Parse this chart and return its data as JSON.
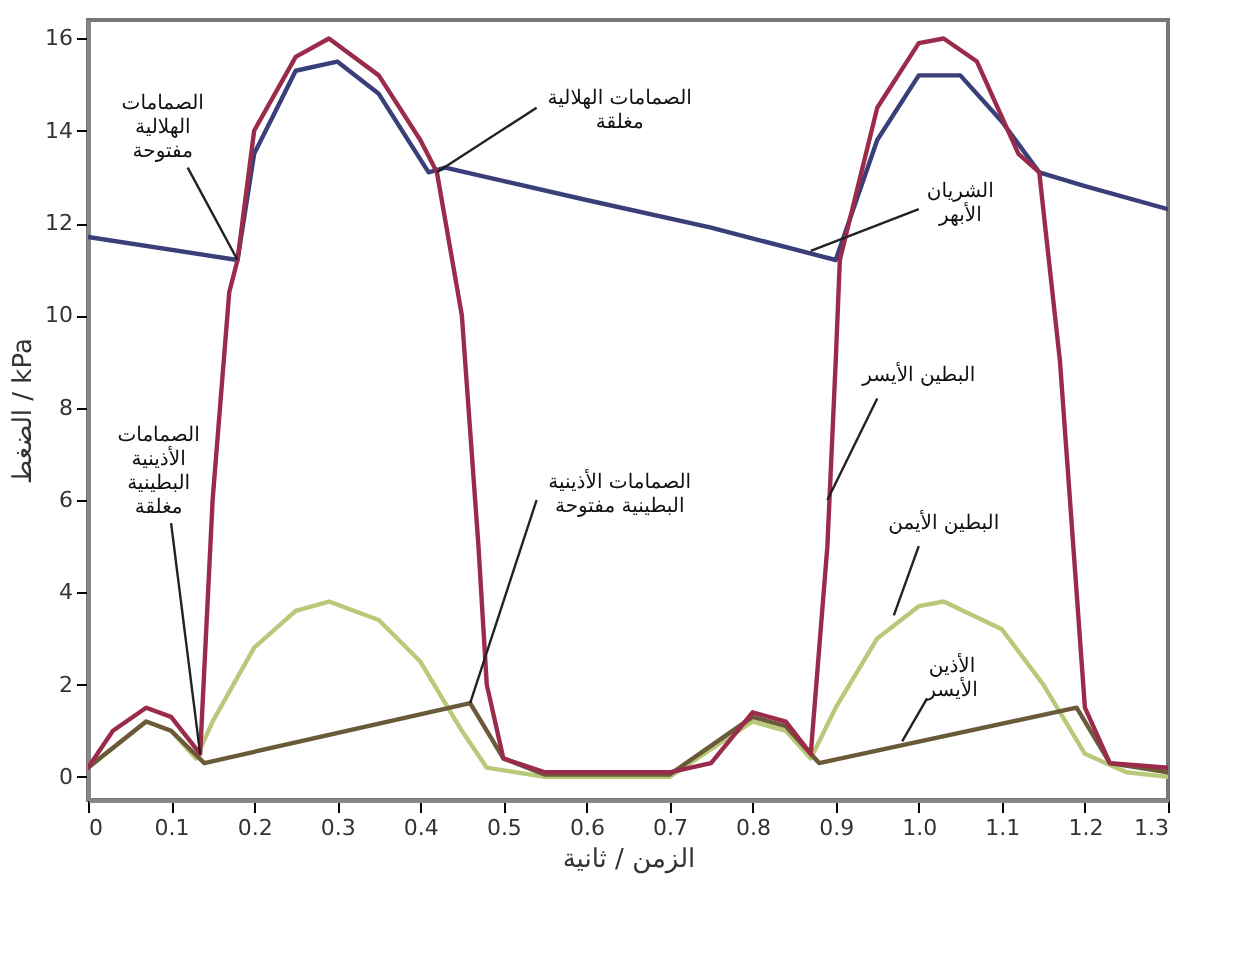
{
  "chart_data": {
    "type": "line",
    "xlabel": "الزمن / ثانية",
    "ylabel": "الضغط / kPa",
    "xlim": [
      0,
      1.3
    ],
    "ylim": [
      -0.5,
      16.4
    ],
    "xticks": [
      0,
      0.1,
      0.2,
      0.3,
      0.4,
      0.5,
      0.6,
      0.7,
      0.8,
      0.9,
      {
        "value": 1,
        "label": "1.0"
      },
      1.1,
      1.2,
      1.3
    ],
    "yticks": [
      0,
      2,
      4,
      6,
      8,
      10,
      12,
      14,
      16
    ],
    "grid": false,
    "marker": "none",
    "line_style": "solid",
    "series": [
      {
        "color": "#3a3f7a",
        "x": [
          0,
          0.18,
          0.2,
          0.25,
          0.3,
          0.35,
          0.41,
          0.43,
          0.6,
          0.75,
          0.9,
          0.95,
          1.0,
          1.05,
          1.1,
          1.145,
          1.2,
          1.3
        ],
        "values": [
          11.7,
          11.2,
          13.5,
          15.3,
          15.5,
          14.8,
          13.1,
          13.2,
          12.5,
          11.9,
          11.2,
          13.8,
          15.2,
          15.2,
          14.2,
          13.1,
          12.8,
          12.3
        ]
      },
      {
        "color": "#b8c97a",
        "x": [
          0,
          0.07,
          0.1,
          0.13,
          0.15,
          0.2,
          0.25,
          0.29,
          0.35,
          0.4,
          0.45,
          0.48,
          0.55,
          0.7,
          0.8,
          0.84,
          0.87,
          0.9,
          0.95,
          1.0,
          1.03,
          1.1,
          1.15,
          1.2,
          1.25,
          1.3
        ],
        "values": [
          0.2,
          1.2,
          1.0,
          0.4,
          1.2,
          2.8,
          3.6,
          3.8,
          3.4,
          2.5,
          1.0,
          0.2,
          0,
          0,
          1.2,
          1.0,
          0.4,
          1.5,
          3.0,
          3.7,
          3.8,
          3.2,
          2.0,
          0.5,
          0.1,
          0
        ]
      },
      {
        "color": "#6b5a3a",
        "x": [
          0,
          0.07,
          0.1,
          0.14,
          0.46,
          0.5,
          0.55,
          0.7,
          0.8,
          0.84,
          0.88,
          1.19,
          1.23,
          1.3
        ],
        "values": [
          0.2,
          1.2,
          1.0,
          0.3,
          1.6,
          0.4,
          0.05,
          0.05,
          1.3,
          1.1,
          0.3,
          1.5,
          0.3,
          0.1
        ]
      },
      {
        "color": "#9b2b4a",
        "x": [
          0,
          0.03,
          0.07,
          0.1,
          0.135,
          0.15,
          0.17,
          0.18,
          0.2,
          0.25,
          0.29,
          0.35,
          0.4,
          0.42,
          0.45,
          0.47,
          0.48,
          0.5,
          0.55,
          0.7,
          0.75,
          0.8,
          0.84,
          0.87,
          0.89,
          0.9,
          0.905,
          0.95,
          1.0,
          1.03,
          1.07,
          1.12,
          1.145,
          1.17,
          1.19,
          1.2,
          1.23,
          1.3
        ],
        "values": [
          0.2,
          1.0,
          1.5,
          1.3,
          0.5,
          6,
          10.5,
          11.2,
          14,
          15.6,
          16,
          15.2,
          13.8,
          13.1,
          10,
          5,
          2,
          0.4,
          0.1,
          0.1,
          0.3,
          1.4,
          1.2,
          0.5,
          5,
          9,
          11.2,
          14.5,
          15.9,
          16,
          15.5,
          13.5,
          13.1,
          9,
          4,
          1.5,
          0.3,
          0.2
        ]
      }
    ],
    "annotations": [
      {
        "text": "الصمامات الهلالية مفتوحة",
        "x": 0.18,
        "y": 11.2
      },
      {
        "text": "الصمامات الهلالية مغلقة",
        "x": 0.42,
        "y": 13.1
      },
      {
        "text": "الشريان الأبهر",
        "x": 0.87,
        "y": 11.4
      },
      {
        "text": "البطين الأيسر",
        "x": 0.89,
        "y": 6
      },
      {
        "text": "الصمامات الأذينية البطينية مغلقة",
        "x": 0.135,
        "y": 0.5
      },
      {
        "text": "الصمامات الأذينية البطينية مفتوحة",
        "x": 0.46,
        "y": 1.6
      },
      {
        "text": "البطين الأيمن",
        "x": 0.97,
        "y": 3.5
      },
      {
        "text": "الأذين الأيسر",
        "x": 0.98,
        "y": 0.77
      }
    ]
  }
}
